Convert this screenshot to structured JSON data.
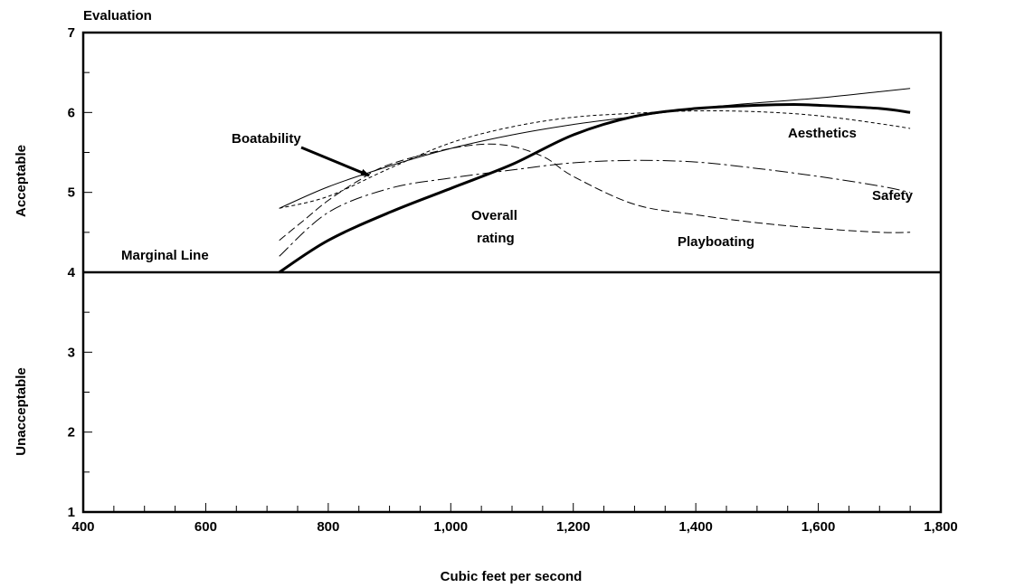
{
  "chart_data": {
    "type": "line",
    "title": "Evaluation",
    "xlabel": "Cubic feet per second",
    "ylabel_upper": "Acceptable",
    "ylabel_lower": "Unacceptable",
    "xlim": [
      400,
      1800
    ],
    "ylim": [
      1,
      7
    ],
    "x_ticks": [
      400,
      600,
      800,
      1000,
      1200,
      1400,
      1600,
      1800
    ],
    "x_tick_labels": [
      "400",
      "600",
      "800",
      "1,000",
      "1,200",
      "1,400",
      "1,600",
      "1,800"
    ],
    "y_ticks": [
      1,
      2,
      3,
      4,
      5,
      6,
      7
    ],
    "y_tick_labels": [
      "1",
      "2",
      "3",
      "4",
      "5",
      "6",
      "7"
    ],
    "x_minor_step": 50,
    "y_minor_step": 0.5,
    "grid": false,
    "marginal_line": {
      "label": "Marginal Line",
      "y": 4
    },
    "series": [
      {
        "name": "Overall rating",
        "style": "bold",
        "x": [
          720,
          800,
          900,
          1000,
          1100,
          1200,
          1300,
          1400,
          1500,
          1560,
          1600,
          1700,
          1750
        ],
        "y": [
          4.0,
          4.4,
          4.75,
          5.05,
          5.35,
          5.72,
          5.95,
          6.05,
          6.09,
          6.1,
          6.09,
          6.05,
          6.0
        ]
      },
      {
        "name": "Boatability",
        "style": "thin",
        "x": [
          720,
          800,
          900,
          1000,
          1100,
          1200,
          1300,
          1400,
          1500,
          1600,
          1700,
          1750
        ],
        "y": [
          4.8,
          5.07,
          5.33,
          5.55,
          5.72,
          5.85,
          5.95,
          6.05,
          6.12,
          6.18,
          6.26,
          6.3
        ]
      },
      {
        "name": "Aesthetics",
        "style": "short-dash",
        "x": [
          720,
          800,
          900,
          1000,
          1100,
          1200,
          1300,
          1400,
          1500,
          1600,
          1700,
          1750
        ],
        "y": [
          4.8,
          4.95,
          5.3,
          5.62,
          5.82,
          5.94,
          5.99,
          6.02,
          6.01,
          5.96,
          5.86,
          5.8
        ]
      },
      {
        "name": "Safety",
        "style": "dash-dot",
        "x": [
          720,
          800,
          900,
          1000,
          1100,
          1200,
          1300,
          1400,
          1500,
          1600,
          1700,
          1750
        ],
        "y": [
          4.2,
          4.75,
          5.05,
          5.18,
          5.28,
          5.37,
          5.4,
          5.38,
          5.3,
          5.2,
          5.08,
          5.0
        ]
      },
      {
        "name": "Playboating",
        "style": "long-dash",
        "x": [
          720,
          760,
          800,
          850,
          900,
          1000,
          1080,
          1150,
          1200,
          1300,
          1400,
          1500,
          1600,
          1700,
          1750
        ],
        "y": [
          4.4,
          4.65,
          4.9,
          5.15,
          5.35,
          5.55,
          5.6,
          5.45,
          5.2,
          4.85,
          4.72,
          4.62,
          4.55,
          4.5,
          4.5
        ]
      }
    ],
    "annotations": [
      {
        "text": "Boatability",
        "arrow": true
      },
      {
        "text": "Overall"
      },
      {
        "text": "rating"
      },
      {
        "text": "Aesthetics"
      },
      {
        "text": "Safety"
      },
      {
        "text": "Playboating"
      }
    ]
  }
}
